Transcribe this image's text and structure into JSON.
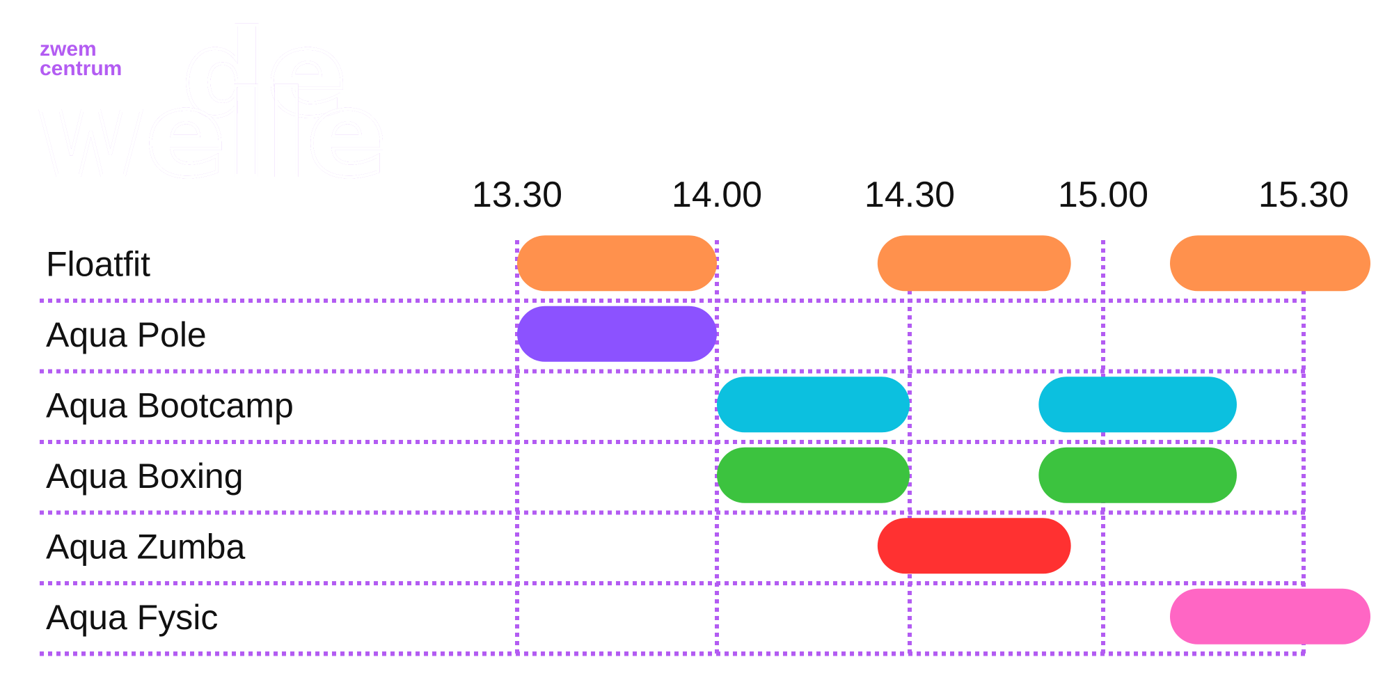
{
  "brand": {
    "line1": "zwem",
    "line2": "centrum",
    "word1": "de",
    "word2": "welle",
    "color": "#b35cf2"
  },
  "colors": {
    "grid": "#b35cf2",
    "orange": "#ff914d",
    "purple": "#8c52ff",
    "cyan": "#0cc0df",
    "green": "#3cc33f",
    "red": "#ff3131",
    "pink": "#ff66c4"
  },
  "times": [
    "13.30",
    "14.00",
    "14.30",
    "15.00",
    "15.30"
  ],
  "activities": [
    {
      "name": "Floatfit",
      "sessions": [
        {
          "start": "13.30",
          "end": "14.00",
          "color": "#ff914d"
        },
        {
          "start": "14.25",
          "end": "14.55",
          "color": "#ff914d"
        },
        {
          "start": "15.10",
          "end": "15.40",
          "color": "#ff914d"
        }
      ]
    },
    {
      "name": "Aqua Pole",
      "sessions": [
        {
          "start": "13.30",
          "end": "14.00",
          "color": "#8c52ff"
        }
      ]
    },
    {
      "name": "Aqua Bootcamp",
      "sessions": [
        {
          "start": "14.00",
          "end": "14.30",
          "color": "#0cc0df"
        },
        {
          "start": "14.50",
          "end": "15.20",
          "color": "#0cc0df"
        }
      ]
    },
    {
      "name": "Aqua Boxing",
      "sessions": [
        {
          "start": "14.00",
          "end": "14.30",
          "color": "#3cc33f"
        },
        {
          "start": "14.50",
          "end": "15.20",
          "color": "#3cc33f"
        }
      ]
    },
    {
      "name": "Aqua Zumba",
      "sessions": [
        {
          "start": "14.25",
          "end": "14.55",
          "color": "#ff3131"
        }
      ]
    },
    {
      "name": "Aqua Fysic",
      "sessions": [
        {
          "start": "15.10",
          "end": "15.40",
          "color": "#ff66c4"
        }
      ]
    }
  ]
}
